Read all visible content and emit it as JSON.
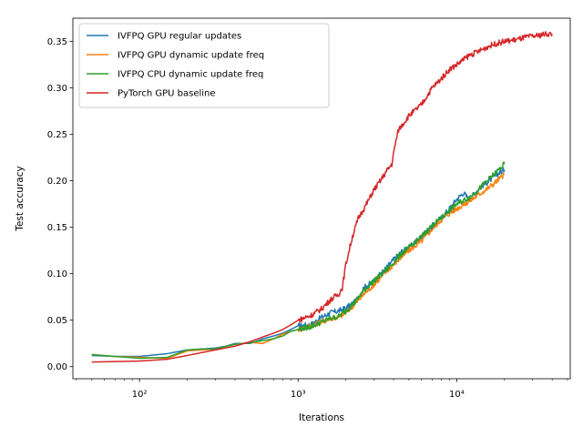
{
  "chart_data": {
    "type": "line",
    "title": "",
    "xlabel": "Iterations",
    "ylabel": "Test accuracy",
    "xscale": "log",
    "xlim": [
      38,
      52000
    ],
    "ylim": [
      -0.013,
      0.375
    ],
    "grid": false,
    "legend_placement": "top-left",
    "x_ticks": [
      {
        "value": 100,
        "label": "10²"
      },
      {
        "value": 1000,
        "label": "10³"
      },
      {
        "value": 10000,
        "label": "10⁴"
      }
    ],
    "y_ticks": [
      {
        "value": 0.0,
        "label": "0.00"
      },
      {
        "value": 0.05,
        "label": "0.05"
      },
      {
        "value": 0.1,
        "label": "0.10"
      },
      {
        "value": 0.15,
        "label": "0.15"
      },
      {
        "value": 0.2,
        "label": "0.20"
      },
      {
        "value": 0.25,
        "label": "0.25"
      },
      {
        "value": 0.3,
        "label": "0.30"
      },
      {
        "value": 0.35,
        "label": "0.35"
      }
    ],
    "series": [
      {
        "name": "IVFPQ GPU regular updates",
        "color": "#1f77b4",
        "points": [
          [
            50,
            0.012
          ],
          [
            70,
            0.011
          ],
          [
            100,
            0.011
          ],
          [
            150,
            0.014
          ],
          [
            200,
            0.018
          ],
          [
            250,
            0.019
          ],
          [
            300,
            0.02
          ],
          [
            350,
            0.022
          ],
          [
            400,
            0.025
          ],
          [
            500,
            0.025
          ],
          [
            600,
            0.03
          ],
          [
            700,
            0.033
          ],
          [
            800,
            0.036
          ],
          [
            900,
            0.04
          ],
          [
            1000,
            0.044
          ],
          [
            1200,
            0.045
          ],
          [
            1400,
            0.053
          ],
          [
            1600,
            0.058
          ],
          [
            1800,
            0.06
          ],
          [
            2000,
            0.063
          ],
          [
            2300,
            0.07
          ],
          [
            2600,
            0.085
          ],
          [
            3000,
            0.092
          ],
          [
            3500,
            0.104
          ],
          [
            4000,
            0.115
          ],
          [
            4500,
            0.124
          ],
          [
            5000,
            0.128
          ],
          [
            6000,
            0.14
          ],
          [
            7000,
            0.15
          ],
          [
            8000,
            0.16
          ],
          [
            9000,
            0.17
          ],
          [
            10000,
            0.18
          ],
          [
            11000,
            0.187
          ],
          [
            12000,
            0.18
          ],
          [
            14000,
            0.193
          ],
          [
            16000,
            0.2
          ],
          [
            18000,
            0.207
          ],
          [
            20000,
            0.212
          ]
        ]
      },
      {
        "name": "IVFPQ GPU dynamic update freq",
        "color": "#ff7f0e",
        "points": [
          [
            50,
            0.013
          ],
          [
            70,
            0.011
          ],
          [
            100,
            0.01
          ],
          [
            150,
            0.009
          ],
          [
            200,
            0.017
          ],
          [
            250,
            0.018
          ],
          [
            300,
            0.019
          ],
          [
            400,
            0.024
          ],
          [
            500,
            0.026
          ],
          [
            600,
            0.025
          ],
          [
            700,
            0.03
          ],
          [
            800,
            0.035
          ],
          [
            900,
            0.038
          ],
          [
            1000,
            0.04
          ],
          [
            1200,
            0.044
          ],
          [
            1400,
            0.048
          ],
          [
            1600,
            0.052
          ],
          [
            1800,
            0.053
          ],
          [
            2000,
            0.058
          ],
          [
            2300,
            0.068
          ],
          [
            2600,
            0.078
          ],
          [
            3000,
            0.088
          ],
          [
            3500,
            0.1
          ],
          [
            4000,
            0.11
          ],
          [
            4500,
            0.118
          ],
          [
            5000,
            0.125
          ],
          [
            6000,
            0.135
          ],
          [
            7000,
            0.148
          ],
          [
            8000,
            0.158
          ],
          [
            9000,
            0.165
          ],
          [
            10000,
            0.17
          ],
          [
            12000,
            0.178
          ],
          [
            14000,
            0.186
          ],
          [
            16000,
            0.193
          ],
          [
            18000,
            0.2
          ],
          [
            20000,
            0.207
          ]
        ]
      },
      {
        "name": "IVFPQ CPU dynamic update freq",
        "color": "#2ca02c",
        "points": [
          [
            50,
            0.013
          ],
          [
            70,
            0.011
          ],
          [
            100,
            0.009
          ],
          [
            150,
            0.01
          ],
          [
            200,
            0.018
          ],
          [
            250,
            0.019
          ],
          [
            300,
            0.019
          ],
          [
            400,
            0.024
          ],
          [
            500,
            0.026
          ],
          [
            600,
            0.028
          ],
          [
            700,
            0.03
          ],
          [
            800,
            0.033
          ],
          [
            900,
            0.038
          ],
          [
            1000,
            0.04
          ],
          [
            1200,
            0.043
          ],
          [
            1400,
            0.048
          ],
          [
            1600,
            0.052
          ],
          [
            1800,
            0.054
          ],
          [
            2000,
            0.06
          ],
          [
            2300,
            0.07
          ],
          [
            2600,
            0.082
          ],
          [
            3000,
            0.092
          ],
          [
            3500,
            0.102
          ],
          [
            4000,
            0.112
          ],
          [
            4500,
            0.122
          ],
          [
            5000,
            0.128
          ],
          [
            6000,
            0.14
          ],
          [
            7000,
            0.152
          ],
          [
            8000,
            0.16
          ],
          [
            9000,
            0.168
          ],
          [
            10000,
            0.175
          ],
          [
            12000,
            0.182
          ],
          [
            14000,
            0.192
          ],
          [
            16000,
            0.202
          ],
          [
            18000,
            0.21
          ],
          [
            20000,
            0.218
          ]
        ]
      },
      {
        "name": "PyTorch GPU baseline",
        "color": "#d62728",
        "points": [
          [
            50,
            0.005
          ],
          [
            100,
            0.006
          ],
          [
            150,
            0.008
          ],
          [
            200,
            0.012
          ],
          [
            300,
            0.018
          ],
          [
            400,
            0.022
          ],
          [
            500,
            0.027
          ],
          [
            600,
            0.032
          ],
          [
            700,
            0.036
          ],
          [
            800,
            0.04
          ],
          [
            900,
            0.045
          ],
          [
            1000,
            0.05
          ],
          [
            1200,
            0.055
          ],
          [
            1400,
            0.062
          ],
          [
            1600,
            0.072
          ],
          [
            1800,
            0.078
          ],
          [
            1900,
            0.085
          ],
          [
            2000,
            0.11
          ],
          [
            2200,
            0.14
          ],
          [
            2400,
            0.16
          ],
          [
            2700,
            0.175
          ],
          [
            3000,
            0.19
          ],
          [
            3300,
            0.2
          ],
          [
            3600,
            0.21
          ],
          [
            3900,
            0.218
          ],
          [
            4100,
            0.24
          ],
          [
            4300,
            0.255
          ],
          [
            5000,
            0.27
          ],
          [
            6000,
            0.282
          ],
          [
            7000,
            0.3
          ],
          [
            8000,
            0.31
          ],
          [
            9000,
            0.32
          ],
          [
            10000,
            0.325
          ],
          [
            12000,
            0.335
          ],
          [
            14000,
            0.34
          ],
          [
            16000,
            0.345
          ],
          [
            18000,
            0.348
          ],
          [
            20000,
            0.35
          ],
          [
            24000,
            0.352
          ],
          [
            28000,
            0.355
          ],
          [
            32000,
            0.356
          ],
          [
            36000,
            0.358
          ],
          [
            40000,
            0.358
          ]
        ]
      }
    ]
  }
}
